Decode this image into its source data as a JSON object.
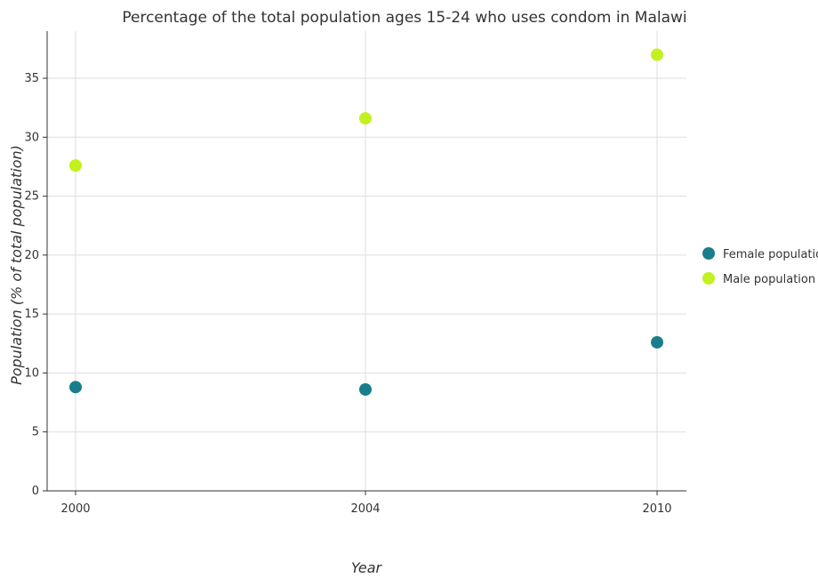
{
  "chart_data": {
    "type": "scatter",
    "title": "Percentage of the total population ages 15-24 who uses condom in Malawi",
    "xlabel": "Year",
    "ylabel": "Population (% of total population)",
    "categories": [
      "2000",
      "2004",
      "2010"
    ],
    "ylim": [
      0,
      39
    ],
    "yticks": [
      0,
      5,
      10,
      15,
      20,
      25,
      30,
      35
    ],
    "grid": true,
    "legend": "right",
    "series": [
      {
        "name": "Female population",
        "color": "#197e8c",
        "values": [
          8.8,
          8.6,
          12.6
        ]
      },
      {
        "name": "Male population",
        "color": "#c3f01f",
        "values": [
          27.6,
          31.6,
          37.0
        ]
      }
    ]
  }
}
